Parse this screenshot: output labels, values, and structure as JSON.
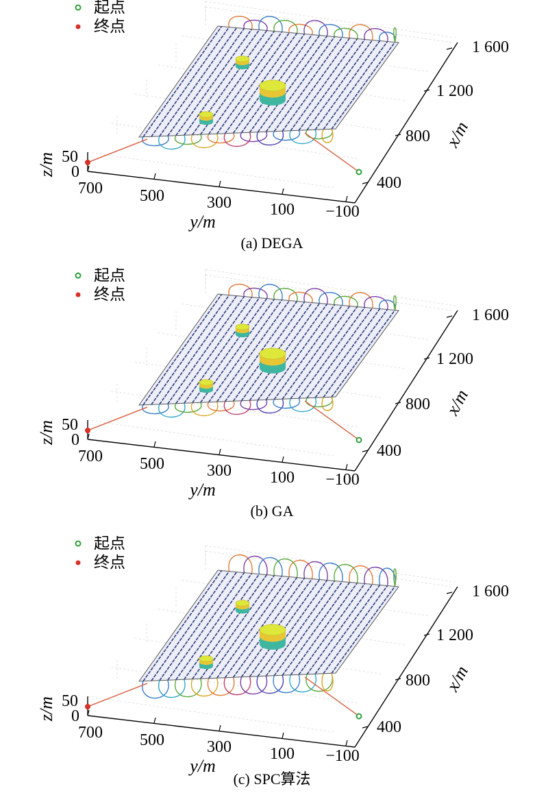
{
  "chart_data": [
    {
      "type": "line3d",
      "caption": "(a) DEGA",
      "legend": [
        {
          "label": "起点",
          "color": "#2e9e3c"
        },
        {
          "label": "终点",
          "color": "#d73027"
        }
      ],
      "xlabel": "x/m",
      "ylabel": "y/m",
      "zlabel": "z/m",
      "x_ticks": [
        "400",
        "800",
        "1 200",
        "1 600"
      ],
      "y_ticks": [
        "700",
        "500",
        "300",
        "100",
        "−100"
      ],
      "z_ticks": [
        "0",
        "50"
      ],
      "passes": 24,
      "obstacles": 3,
      "turn_style": "mixed loops"
    },
    {
      "type": "line3d",
      "caption": "(b) GA",
      "legend": [
        {
          "label": "起点",
          "color": "#2e9e3c"
        },
        {
          "label": "终点",
          "color": "#d73027"
        }
      ],
      "xlabel": "x/m",
      "ylabel": "y/m",
      "zlabel": "z/m",
      "x_ticks": [
        "400",
        "800",
        "1 200",
        "1 600"
      ],
      "y_ticks": [
        "700",
        "500",
        "300",
        "100",
        "−100"
      ],
      "z_ticks": [
        "0",
        "50"
      ],
      "passes": 24,
      "obstacles": 3,
      "turn_style": "mixed loops"
    },
    {
      "type": "line3d",
      "caption": "(c) SPC算法",
      "legend": [
        {
          "label": "起点",
          "color": "#2e9e3c"
        },
        {
          "label": "终点",
          "color": "#d73027"
        }
      ],
      "xlabel": "x/m",
      "ylabel": "y/m",
      "zlabel": "z/m",
      "x_ticks": [
        "400",
        "800",
        "1 200",
        "1 600"
      ],
      "y_ticks": [
        "700",
        "500",
        "300",
        "100",
        "−100"
      ],
      "z_ticks": [
        "0",
        "50"
      ],
      "passes": 24,
      "obstacles": 3,
      "turn_style": "overlapping loops"
    }
  ]
}
